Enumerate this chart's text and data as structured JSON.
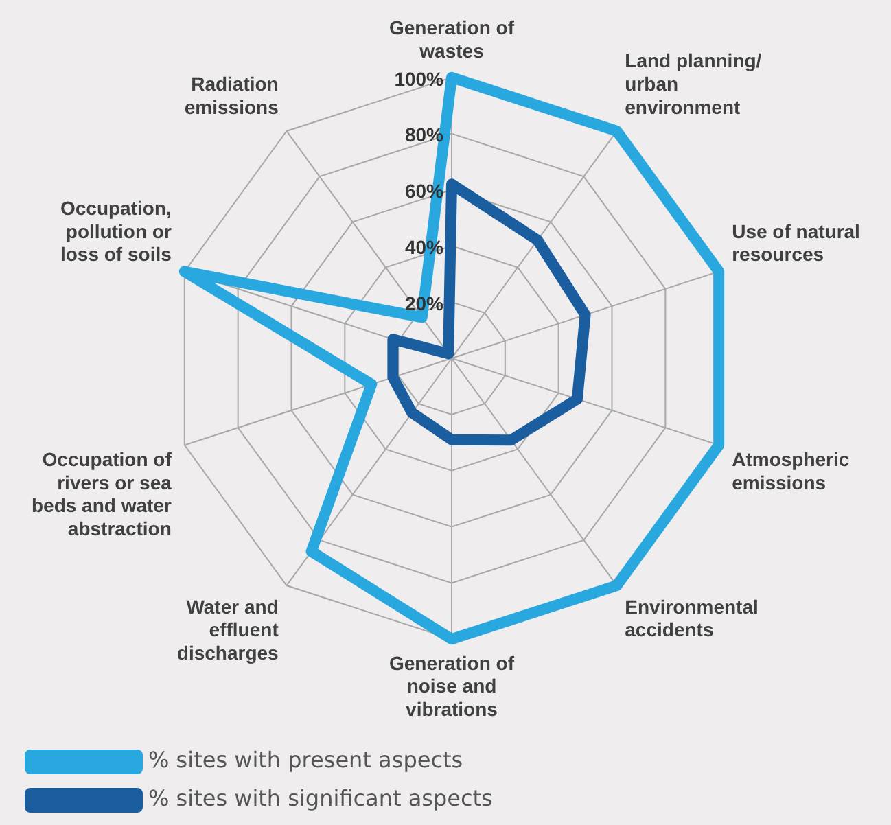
{
  "chart_data": {
    "type": "radar",
    "categories": [
      "Generation of wastes",
      "Land planning/ urban environment",
      "Use of natural resources",
      "Atmospheric emissions",
      "Environmental accidents",
      "Generation of noise and vibrations",
      "Water and effluent discharges",
      "Occupation of rivers or sea beds and water abstraction",
      "Occupation, pollution or loss of soils",
      "Radiation emissions"
    ],
    "series": [
      {
        "name": "% sites with present aspects",
        "color": "#29a8e0",
        "values": [
          100,
          100,
          100,
          100,
          100,
          100,
          85,
          30,
          100,
          18
        ]
      },
      {
        "name": "% sites with significant aspects",
        "color": "#1b5ea0",
        "values": [
          62,
          52,
          50,
          47,
          36,
          29,
          24,
          22,
          22,
          2
        ]
      }
    ],
    "ylim": [
      0,
      100
    ],
    "yticks": [
      {
        "value": 20,
        "label": "20%"
      },
      {
        "value": 40,
        "label": "40%"
      },
      {
        "value": 60,
        "label": "60%"
      },
      {
        "value": 80,
        "label": "80%"
      },
      {
        "value": 100,
        "label": "100%"
      }
    ],
    "grid": true,
    "legend": "bottom left",
    "marker": "none"
  }
}
